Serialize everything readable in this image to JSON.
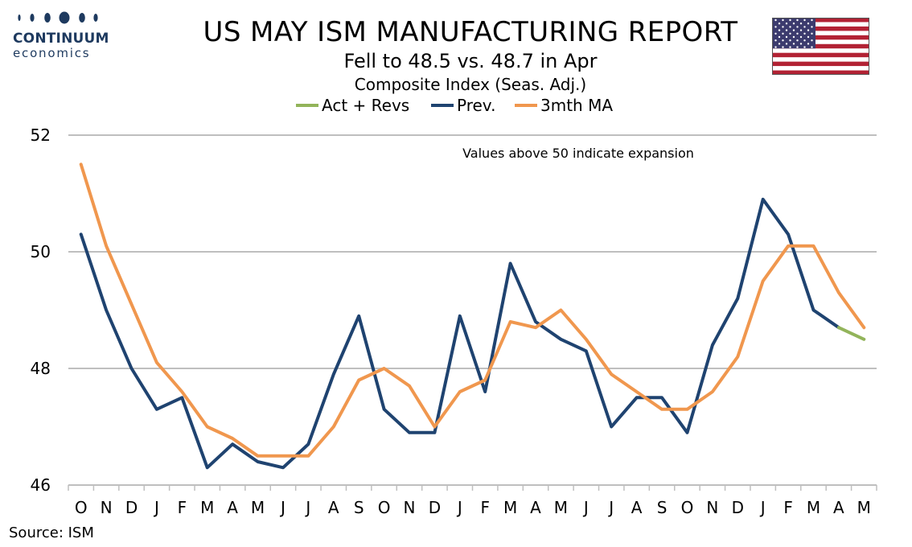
{
  "header": {
    "title": "US MAY ISM MANUFACTURING REPORT",
    "subtitle": "Fell to 48.5 vs. 48.7 in Apr",
    "subtitle2": "Composite Index (Seas. Adj.)"
  },
  "logo": {
    "line1": "CONTINUUM",
    "line2": "economics",
    "color": "#1e3a5f"
  },
  "flag": {
    "name": "us-flag-icon"
  },
  "legend": [
    {
      "label": "Act + Revs",
      "color": "#92b45a"
    },
    {
      "label": "Prev.",
      "color": "#1f4370"
    },
    {
      "label": "3mth MA",
      "color": "#f0974e"
    }
  ],
  "annotation": "Values above 50 indicate expansion",
  "source": "Source: ISM",
  "chart_data": {
    "type": "line",
    "categories": [
      "O",
      "N",
      "D",
      "J",
      "F",
      "M",
      "A",
      "M",
      "J",
      "J",
      "A",
      "S",
      "O",
      "N",
      "D",
      "J",
      "F",
      "M",
      "A",
      "M",
      "J",
      "J",
      "A",
      "S",
      "O",
      "N",
      "D",
      "J",
      "F",
      "M",
      "A",
      "M"
    ],
    "ylim": [
      46,
      52
    ],
    "yticks": [
      46,
      48,
      50,
      52
    ],
    "grid": true,
    "legend_position": "top",
    "series": [
      {
        "name": "Prev.",
        "color": "#1f4370",
        "values": [
          50.3,
          49.0,
          48.0,
          47.3,
          47.5,
          46.3,
          46.7,
          46.4,
          46.3,
          46.7,
          47.9,
          48.9,
          47.3,
          46.9,
          46.9,
          48.9,
          47.6,
          49.8,
          48.8,
          48.5,
          48.3,
          47.0,
          47.5,
          47.5,
          46.9,
          48.4,
          49.2,
          50.9,
          50.3,
          49.0,
          48.7,
          null
        ]
      },
      {
        "name": "3mth MA",
        "color": "#f0974e",
        "values": [
          51.5,
          50.1,
          49.1,
          48.1,
          47.6,
          47.0,
          46.8,
          46.5,
          46.5,
          46.5,
          47.0,
          47.8,
          48.0,
          47.7,
          47.0,
          47.6,
          47.8,
          48.8,
          48.7,
          49.0,
          48.5,
          47.9,
          47.6,
          47.3,
          47.3,
          47.6,
          48.2,
          49.5,
          50.1,
          50.1,
          49.3,
          48.7
        ]
      },
      {
        "name": "Act + Revs",
        "color": "#92b45a",
        "values": [
          null,
          null,
          null,
          null,
          null,
          null,
          null,
          null,
          null,
          null,
          null,
          null,
          null,
          null,
          null,
          null,
          null,
          null,
          null,
          null,
          null,
          null,
          null,
          null,
          null,
          null,
          null,
          null,
          null,
          null,
          48.7,
          48.5
        ]
      }
    ]
  }
}
